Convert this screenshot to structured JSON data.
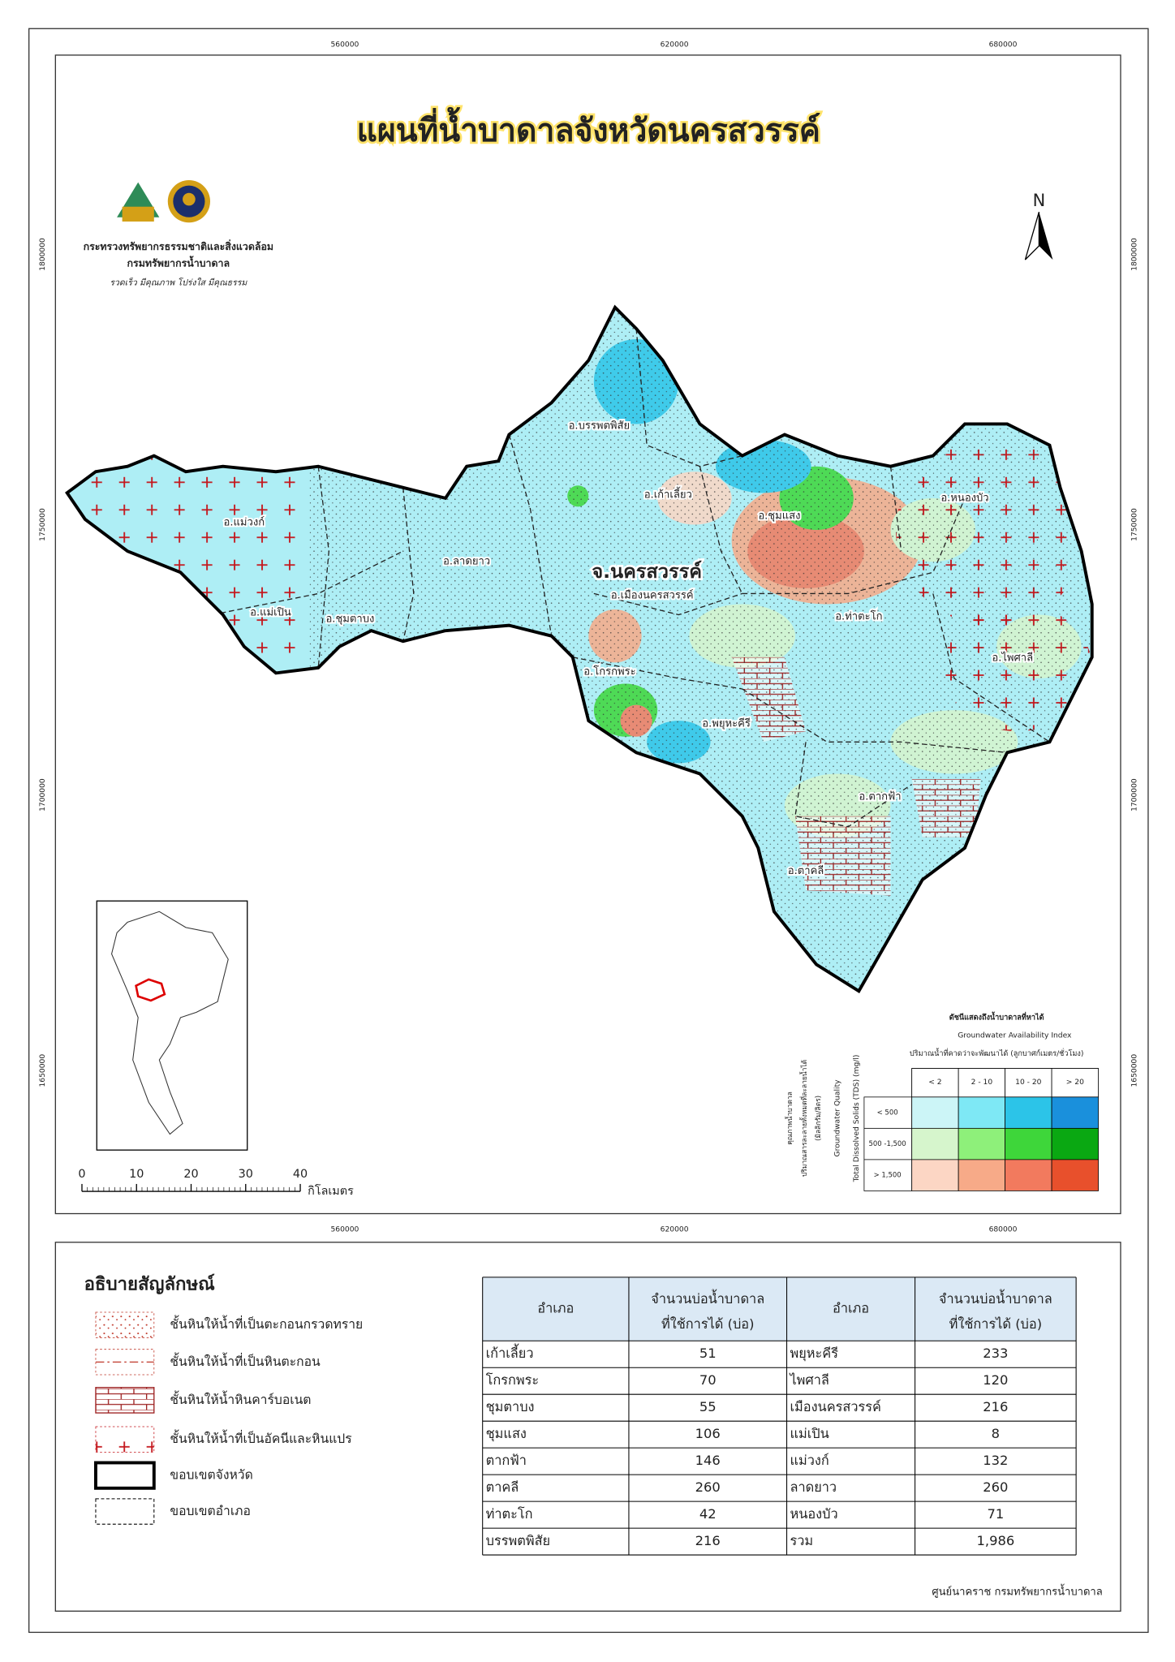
{
  "title": "แผนที่น้ำบาดาลจังหวัดนครสวรรค์",
  "agency": {
    "ministry": "กระทรวงทรัพยากรธรรมชาติและสิ่งแวดล้อม",
    "department": "กรมทรัพยากรน้ำบาดาล",
    "motto": "รวดเร็ว มีคุณภาพ โปร่งใส มีคุณธรรม"
  },
  "north": "N",
  "grid_labels": {
    "easting": [
      "560000",
      "620000",
      "680000"
    ],
    "northing": [
      "1800000",
      "1750000",
      "1700000",
      "1650000"
    ]
  },
  "province_label": "จ.นครสวรรค์",
  "districts": [
    "อ.บรรพตพิสัย",
    "อ.เก้าเลี้ยว",
    "อ.ชุมแสง",
    "อ.หนองบัว",
    "อ.แม่วงก์",
    "อ.ลาดยาว",
    "อ.เมืองนครสวรรค์",
    "อ.แม่เปิน",
    "อ.ชุมตาบง",
    "อ.ท่าตะโก",
    "อ.ไพศาลี",
    "อ.โกรกพระ",
    "อ.พยุหะคีรี",
    "อ.ตากฟ้า",
    "อ.ตาคลี"
  ],
  "scale_bar": {
    "ticks": [
      "0",
      "10",
      "20",
      "30",
      "40"
    ],
    "unit": "กิโลเมตร"
  },
  "availability_legend": {
    "title_th": "ดัชนีแสดงถึงน้ำบาดาลที่หาได้",
    "title_en": "Groundwater Availability Index",
    "yield_label": "ปริมาณน้ำที่คาดว่าจะพัฒนาได้ (ลูกบาศก์เมตร/ชั่วโมง)",
    "yield_classes": [
      "< 2",
      "2 - 10",
      "10 - 20",
      "> 20"
    ],
    "quality_label_th": [
      "คุณภาพน้ำบาดาล",
      "ปริมาณสารละลายทั้งหมดที่ละลายน้ำได้",
      "(มิลลิกรัม/ลิตร)"
    ],
    "quality_label_en": [
      "Groundwater Quality",
      "Total Dissolved Solids (TDS) (mg/l)"
    ],
    "tds_classes": [
      "< 500",
      "500 -1,500",
      "> 1,500"
    ],
    "colors": [
      [
        "#ccf5f7",
        "#7ee8f5",
        "#2cc4e8",
        "#1a90dc"
      ],
      [
        "#d6f5cc",
        "#8ef07a",
        "#3ed63a",
        "#0aa812"
      ],
      [
        "#fcd6c4",
        "#f7aa88",
        "#f27a5e",
        "#e8502c"
      ]
    ]
  },
  "legend": {
    "title": "อธิบายสัญลักษณ์",
    "items": [
      "ชั้นหินให้น้ำที่เป็นตะกอนกรวดทราย",
      "ชั้นหินให้น้ำที่เป็นหินตะกอน",
      "ชั้นหินให้น้ำหินคาร์บอเนต",
      "ชั้นหินให้น้ำที่เป็นอัคนีและหินแปร",
      "ขอบเขตจังหวัด",
      "ขอบเขตอำเภอ"
    ]
  },
  "table": {
    "header": [
      "อำเภอ",
      [
        "จำนวนบ่อน้ำบาดาล",
        "ที่ใช้การได้ (บ่อ)"
      ],
      "อำเภอ",
      [
        "จำนวนบ่อน้ำบาดาล",
        "ที่ใช้การได้ (บ่อ)"
      ]
    ],
    "rows": [
      [
        "เก้าเลี้ยว",
        "51",
        "พยุหะคีรี",
        "233"
      ],
      [
        "โกรกพระ",
        "70",
        "ไพศาลี",
        "120"
      ],
      [
        "ชุมตาบง",
        "55",
        "เมืองนครสวรรค์",
        "216"
      ],
      [
        "ชุมแสง",
        "106",
        "แม่เปิน",
        "8"
      ],
      [
        "ตากฟ้า",
        "146",
        "แม่วงก์",
        "132"
      ],
      [
        "ตาคลี",
        "260",
        "ลาดยาว",
        "260"
      ],
      [
        "ท่าตะโก",
        "42",
        "หนองบัว",
        "71"
      ],
      [
        "บรรพตพิสัย",
        "216",
        "รวม",
        "1,986"
      ]
    ]
  },
  "credit": "ศูนย์นาคราช กรมทรัพยากรน้ำบาดาล"
}
